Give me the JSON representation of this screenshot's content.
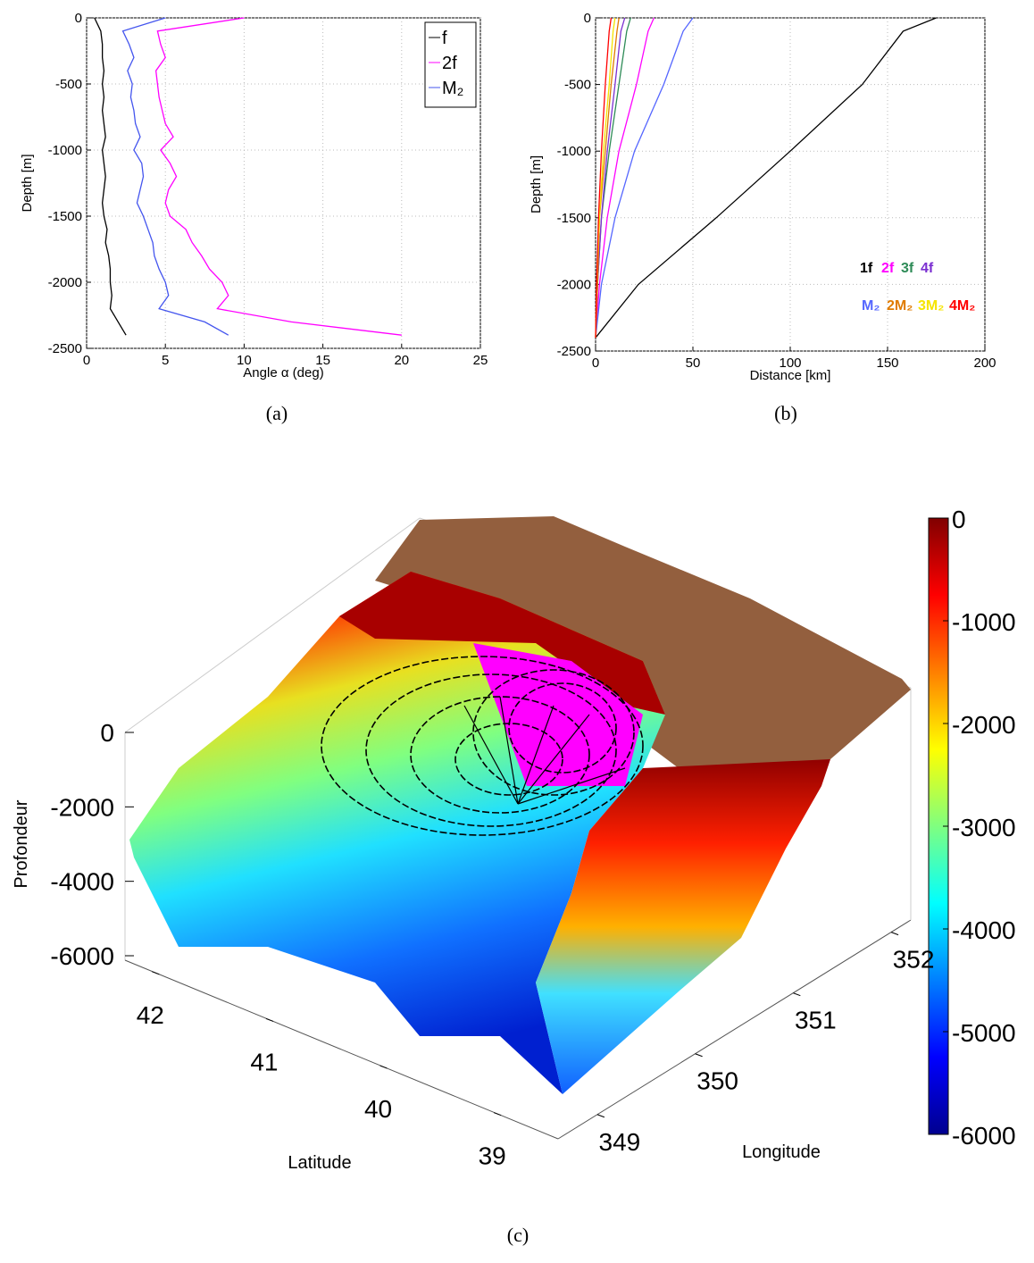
{
  "chart_data": [
    {
      "type": "line",
      "caption": "(a)",
      "xlabel": "Angle α (deg)",
      "ylabel": "Depth [m]",
      "y": [
        0,
        -100,
        -200,
        -300,
        -400,
        -500,
        -600,
        -700,
        -800,
        -900,
        -1000,
        -1100,
        -1200,
        -1300,
        -1400,
        -1500,
        -1600,
        -1700,
        -1800,
        -1900,
        -2000,
        -2100,
        -2200,
        -2300,
        -2400
      ],
      "series": [
        {
          "name": "f",
          "color": "#000000",
          "values": [
            0.5,
            0.9,
            1.0,
            1.0,
            1.1,
            1.0,
            1.1,
            1.0,
            1.1,
            1.2,
            1.0,
            1.1,
            1.2,
            1.1,
            1.0,
            1.1,
            1.3,
            1.2,
            1.4,
            1.5,
            1.5,
            1.6,
            1.5,
            2.0,
            2.5
          ]
        },
        {
          "name": "2f",
          "color": "#ff00ff",
          "values": [
            10,
            4.5,
            4.7,
            5.0,
            4.4,
            4.5,
            4.6,
            4.8,
            5.0,
            5.5,
            4.7,
            5.3,
            5.7,
            5.2,
            5.0,
            5.3,
            6.3,
            6.7,
            7.3,
            7.8,
            8.6,
            9.0,
            8.3,
            13,
            20
          ]
        },
        {
          "name": "M₂",
          "color": "#4455ee",
          "values": [
            5,
            2.3,
            2.7,
            3.0,
            2.6,
            2.9,
            2.8,
            3.0,
            3.1,
            3.4,
            3.0,
            3.5,
            3.6,
            3.4,
            3.2,
            3.6,
            3.9,
            4.2,
            4.3,
            4.6,
            5.0,
            5.2,
            4.6,
            7.5,
            9
          ]
        }
      ],
      "xlim": [
        0,
        25
      ],
      "xticks": [
        0,
        5,
        10,
        15,
        20,
        25
      ],
      "ylim": [
        -2500,
        0
      ],
      "yticks": [
        -2500,
        -2000,
        -1500,
        -1000,
        -500,
        0
      ],
      "grid": true,
      "legend": "upper right"
    },
    {
      "type": "line",
      "caption": "(b)",
      "xlabel": "Distance [km]",
      "ylabel": "Depth [m]",
      "y": [
        0,
        -100,
        -500,
        -1000,
        -1500,
        -2000,
        -2400
      ],
      "series": [
        {
          "name": "1f",
          "color": "#000000",
          "values": [
            175,
            158,
            137,
            100,
            62,
            22,
            0
          ]
        },
        {
          "name": "2f",
          "color": "#ff00ff",
          "values": [
            30,
            27,
            21,
            12,
            6,
            2,
            0
          ]
        },
        {
          "name": "3f",
          "color": "#2e8b57",
          "values": [
            18,
            16,
            12,
            7,
            3,
            1,
            0
          ]
        },
        {
          "name": "4f",
          "color": "#7b2fd1",
          "values": [
            15,
            13,
            10,
            6,
            3,
            1,
            0
          ]
        },
        {
          "name": "M₂",
          "color": "#5566ff",
          "values": [
            50,
            45,
            35,
            20,
            10,
            3,
            0
          ]
        },
        {
          "name": "2M₂",
          "color": "#e07b00",
          "values": [
            12,
            11,
            8,
            5,
            2,
            1,
            0
          ]
        },
        {
          "name": "3M₂",
          "color": "#f5e400",
          "values": [
            10,
            9,
            7,
            4,
            2,
            0.5,
            0
          ]
        },
        {
          "name": "4M₂",
          "color": "#ff0000",
          "values": [
            8,
            7,
            5,
            3,
            1.5,
            0.5,
            0
          ]
        }
      ],
      "xlim": [
        0,
        200
      ],
      "xticks": [
        0,
        50,
        100,
        150,
        200
      ],
      "ylim": [
        -2500,
        0
      ],
      "yticks": [
        -2500,
        -2000,
        -1500,
        -1000,
        -500,
        0
      ],
      "grid": true,
      "legend": "lower right"
    },
    {
      "type": "surface",
      "caption": "(c)",
      "zlabel": "Profondeur",
      "xlabel": "Latitude",
      "ylabel": "Longitude",
      "zlim": [
        -6000,
        0
      ],
      "zticks": [
        -6000,
        -4000,
        -2000,
        0
      ],
      "xlim": [
        38.5,
        42.3
      ],
      "xticks": [
        39,
        40,
        41,
        42
      ],
      "ylim": [
        348.6,
        352.2
      ],
      "yticks": [
        349,
        350,
        351,
        352
      ],
      "clim": [
        -6000,
        0
      ],
      "cticks": [
        -6000,
        -5000,
        -4000,
        -3000,
        -2000,
        -1000,
        0
      ],
      "colormap": "jet"
    }
  ]
}
